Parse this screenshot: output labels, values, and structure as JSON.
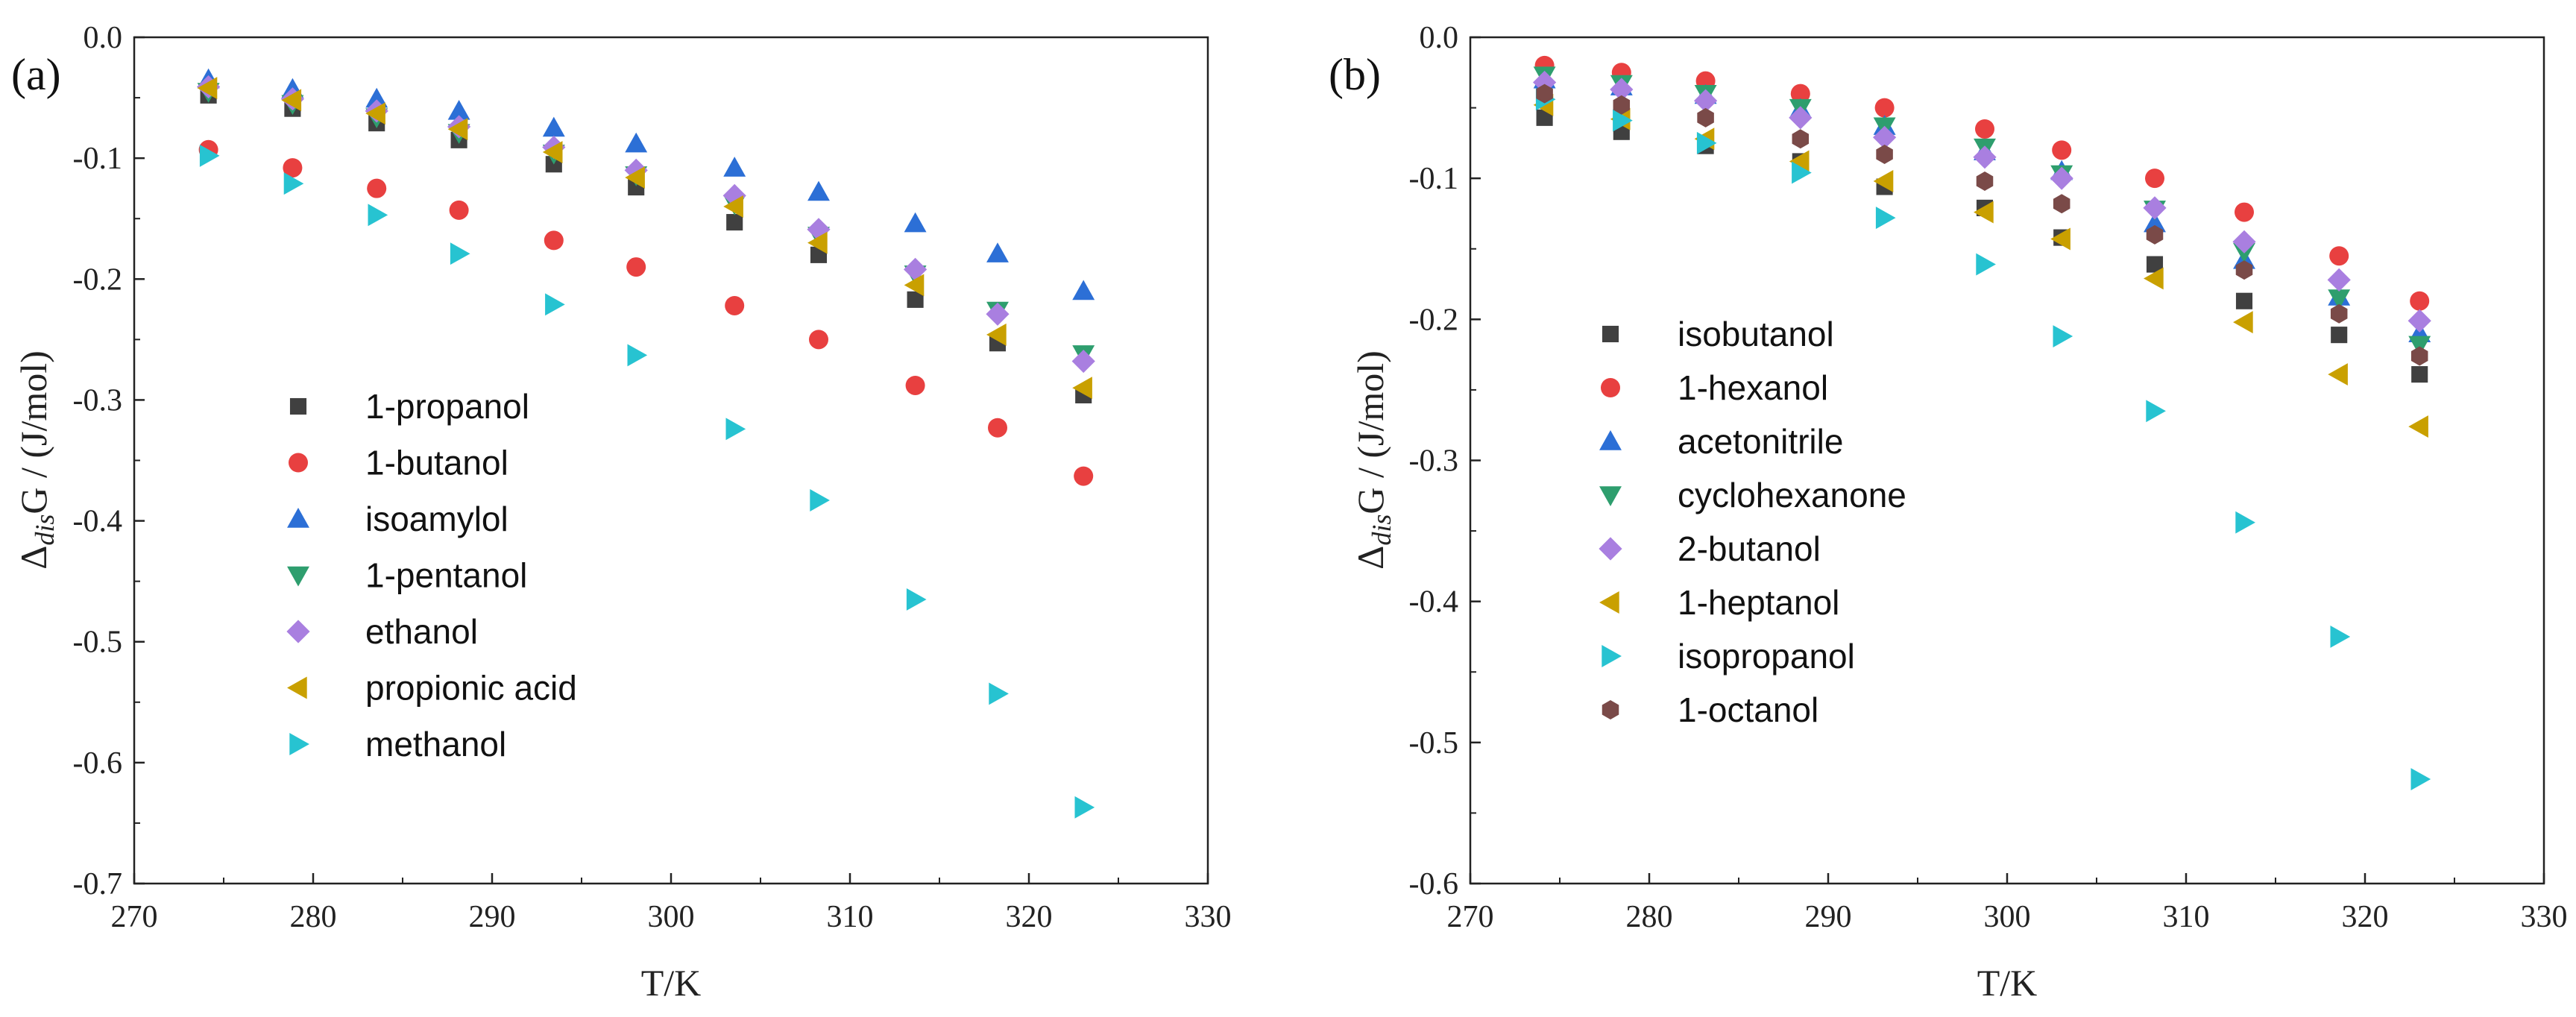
{
  "chart_data": [
    {
      "panel_label": "(a)",
      "type": "scatter",
      "xlabel": "T/K",
      "ylabel_prefix": "Δ",
      "ylabel_sub": "dis",
      "ylabel_suffix": "G / (J/mol)",
      "xlim": [
        270,
        330
      ],
      "ylim": [
        -0.7,
        0.0
      ],
      "xticks": [
        270,
        280,
        290,
        300,
        310,
        320,
        330
      ],
      "xtick_labels": [
        "270",
        "280",
        "290",
        "300",
        "310",
        "320",
        "330"
      ],
      "yticks": [
        0.0,
        -0.1,
        -0.2,
        -0.3,
        -0.4,
        -0.5,
        -0.6,
        -0.7
      ],
      "ytick_labels": [
        "0.0",
        "-0.1",
        "-0.2",
        "-0.3",
        "-0.4",
        "-0.5",
        "-0.6",
        "-0.7"
      ],
      "grid": false,
      "legend_position": "lower-left",
      "x": [
        274.15,
        278.85,
        283.55,
        288.15,
        293.45,
        298.05,
        303.55,
        308.25,
        313.65,
        318.25,
        323.05
      ],
      "series": [
        {
          "name": "1-propanol",
          "marker": "square",
          "color": "#404040",
          "values": [
            -0.048,
            -0.059,
            -0.071,
            -0.085,
            -0.105,
            -0.124,
            -0.153,
            -0.18,
            -0.217,
            -0.253,
            -0.296
          ]
        },
        {
          "name": "1-butanol",
          "marker": "circle",
          "color": "#e84040",
          "values": [
            -0.093,
            -0.108,
            -0.125,
            -0.143,
            -0.168,
            -0.19,
            -0.222,
            -0.25,
            -0.288,
            -0.323,
            -0.363
          ]
        },
        {
          "name": "isoamylol",
          "marker": "triangle-up",
          "color": "#2c6fd6",
          "values": [
            -0.035,
            -0.043,
            -0.051,
            -0.061,
            -0.075,
            -0.088,
            -0.108,
            -0.128,
            -0.154,
            -0.179,
            -0.21
          ]
        },
        {
          "name": "1-pentanol",
          "marker": "triangle-down",
          "color": "#2e9e6e",
          "values": [
            -0.045,
            -0.055,
            -0.066,
            -0.079,
            -0.096,
            -0.114,
            -0.138,
            -0.164,
            -0.196,
            -0.226,
            -0.262
          ]
        },
        {
          "name": "ethanol",
          "marker": "diamond",
          "color": "#a97fe0",
          "values": [
            -0.041,
            -0.051,
            -0.061,
            -0.074,
            -0.091,
            -0.11,
            -0.131,
            -0.159,
            -0.192,
            -0.229,
            -0.268
          ]
        },
        {
          "name": "propionic acid",
          "marker": "triangle-left",
          "color": "#c9a000",
          "values": [
            -0.042,
            -0.052,
            -0.063,
            -0.076,
            -0.095,
            -0.116,
            -0.14,
            -0.17,
            -0.205,
            -0.246,
            -0.29
          ]
        },
        {
          "name": "methanol",
          "marker": "triangle-right",
          "color": "#27c3d1",
          "values": [
            -0.098,
            -0.121,
            -0.147,
            -0.179,
            -0.221,
            -0.263,
            -0.324,
            -0.383,
            -0.465,
            -0.543,
            -0.637
          ]
        }
      ]
    },
    {
      "panel_label": "(b)",
      "type": "scatter",
      "xlabel": "T/K",
      "ylabel_prefix": "Δ",
      "ylabel_sub": "dis",
      "ylabel_suffix": "G / (J/mol)",
      "xlim": [
        270,
        330
      ],
      "ylim": [
        -0.6,
        0.0
      ],
      "xticks": [
        270,
        280,
        290,
        300,
        310,
        320,
        330
      ],
      "xtick_labels": [
        "270",
        "280",
        "290",
        "300",
        "310",
        "320",
        "330"
      ],
      "yticks": [
        0.0,
        -0.1,
        -0.2,
        -0.3,
        -0.4,
        -0.5,
        -0.6
      ],
      "ytick_labels": [
        "0.0",
        "-0.1",
        "-0.2",
        "-0.3",
        "-0.4",
        "-0.5",
        "-0.6"
      ],
      "grid": false,
      "legend_position": "left",
      "x": [
        274.15,
        278.45,
        283.15,
        288.45,
        293.15,
        298.75,
        303.05,
        308.25,
        313.25,
        318.55,
        323.05
      ],
      "series": [
        {
          "name": "isobutanol",
          "marker": "square",
          "color": "#404040",
          "values": [
            -0.057,
            -0.067,
            -0.077,
            -0.088,
            -0.106,
            -0.121,
            -0.142,
            -0.161,
            -0.187,
            -0.211,
            -0.239
          ]
        },
        {
          "name": "1-hexanol",
          "marker": "circle",
          "color": "#e84040",
          "values": [
            -0.02,
            -0.025,
            -0.031,
            -0.04,
            -0.05,
            -0.065,
            -0.08,
            -0.1,
            -0.124,
            -0.155,
            -0.187
          ]
        },
        {
          "name": "acetonitrile",
          "marker": "triangle-up",
          "color": "#2c6fd6",
          "values": [
            -0.03,
            -0.035,
            -0.041,
            -0.051,
            -0.063,
            -0.081,
            -0.095,
            -0.132,
            -0.158,
            -0.184,
            -0.21
          ]
        },
        {
          "name": "cyclohexanone",
          "marker": "triangle-down",
          "color": "#2e9e6e",
          "values": [
            -0.027,
            -0.033,
            -0.04,
            -0.05,
            -0.063,
            -0.078,
            -0.097,
            -0.122,
            -0.152,
            -0.185,
            -0.218
          ]
        },
        {
          "name": "2-butanol",
          "marker": "diamond",
          "color": "#a97fe0",
          "values": [
            -0.032,
            -0.037,
            -0.045,
            -0.057,
            -0.071,
            -0.085,
            -0.1,
            -0.121,
            -0.145,
            -0.172,
            -0.201
          ]
        },
        {
          "name": "1-heptanol",
          "marker": "triangle-left",
          "color": "#c9a000",
          "values": [
            -0.048,
            -0.058,
            -0.072,
            -0.088,
            -0.102,
            -0.124,
            -0.143,
            -0.171,
            -0.202,
            -0.239,
            -0.276
          ]
        },
        {
          "name": "isopropanol",
          "marker": "triangle-right",
          "color": "#27c3d1",
          "values": [
            -0.044,
            -0.059,
            -0.075,
            -0.096,
            -0.128,
            -0.161,
            -0.212,
            -0.265,
            -0.344,
            -0.425,
            -0.526
          ]
        },
        {
          "name": "1-octanol",
          "marker": "hexagon",
          "color": "#7a4a48",
          "values": [
            -0.04,
            -0.048,
            -0.057,
            -0.072,
            -0.083,
            -0.102,
            -0.118,
            -0.14,
            -0.165,
            -0.196,
            -0.226
          ]
        }
      ]
    }
  ]
}
